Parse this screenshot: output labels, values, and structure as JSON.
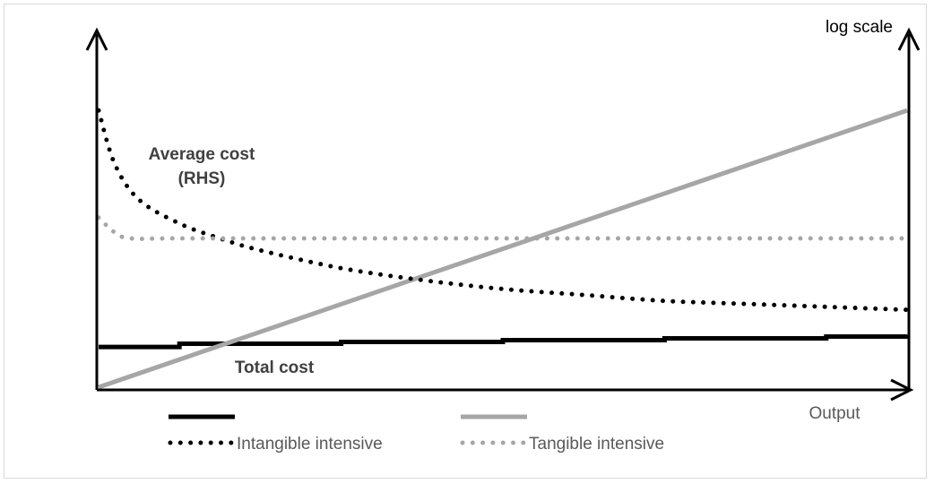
{
  "chart_data": {
    "type": "line",
    "x_axis_label": "Output",
    "y_axis_note_right": "log scale",
    "annotations": {
      "average_cost": [
        "Average cost",
        "(RHS)"
      ],
      "total_cost": "Total cost"
    },
    "legend": {
      "placement": "bottom",
      "items": [
        {
          "label": "",
          "style": "solid",
          "color": "#000000"
        },
        {
          "label": "",
          "style": "solid",
          "color": "#a6a6a6"
        },
        {
          "label": "Intangible intensive",
          "style": "dotted",
          "color": "#000000"
        },
        {
          "label": "Tangible intensive",
          "style": "dotted",
          "color": "#a6a6a6"
        }
      ]
    },
    "colors": {
      "intangible": "#000000",
      "tangible": "#a6a6a6",
      "axis": "#000000",
      "text_bold": "#404040",
      "text_light": "#595959"
    },
    "series": [
      {
        "kind": "total-cost",
        "group": "intangible",
        "style": "solid",
        "x": [
          0,
          0.1,
          0.3,
          0.5,
          0.7,
          0.9,
          1.0
        ],
        "y": [
          0.135,
          0.146,
          0.152,
          0.158,
          0.164,
          0.17,
          0.176
        ]
      },
      {
        "kind": "total-cost",
        "group": "tangible",
        "style": "solid",
        "x": [
          0,
          1.0
        ],
        "y": [
          0.0,
          0.93
        ]
      },
      {
        "kind": "average-cost",
        "group": "intangible",
        "style": "dotted",
        "x": [
          0.0,
          0.02,
          0.05,
          0.1,
          0.15,
          0.2,
          0.3,
          0.4,
          0.5,
          0.6,
          0.7,
          0.8,
          0.9,
          1.0
        ],
        "y": [
          0.93,
          0.75,
          0.63,
          0.55,
          0.5,
          0.46,
          0.4,
          0.36,
          0.33,
          0.31,
          0.29,
          0.28,
          0.27,
          0.26
        ]
      },
      {
        "kind": "average-cost",
        "group": "tangible",
        "style": "dotted",
        "x": [
          0.0,
          0.02,
          0.04,
          0.1,
          0.3,
          0.5,
          0.7,
          0.9,
          1.0
        ],
        "y": [
          0.57,
          0.52,
          0.5,
          0.5,
          0.5,
          0.5,
          0.5,
          0.5,
          0.5
        ]
      }
    ]
  }
}
